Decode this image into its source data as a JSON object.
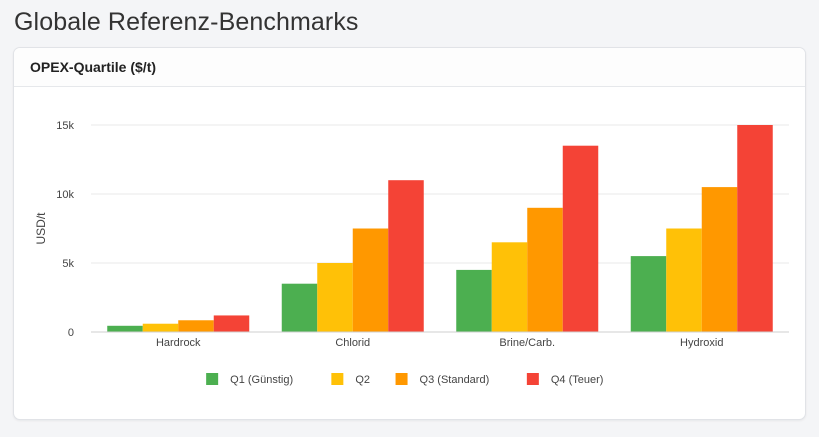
{
  "page": {
    "title": "Globale Referenz-Benchmarks"
  },
  "card": {
    "title": "OPEX-Quartile ($/t)"
  },
  "chart_data": {
    "type": "bar",
    "title": "OPEX-Quartile ($/t)",
    "xlabel": "",
    "ylabel": "USD/t",
    "categories": [
      "Hardrock",
      "Chlorid",
      "Brine/Carb.",
      "Hydroxid"
    ],
    "series": [
      {
        "name": "Q1 (Günstig)",
        "color": "#4caf50",
        "values": [
          450,
          3500,
          4500,
          5500
        ]
      },
      {
        "name": "Q2",
        "color": "#ffc107",
        "values": [
          600,
          5000,
          6500,
          7500
        ]
      },
      {
        "name": "Q3 (Standard)",
        "color": "#ff9800",
        "values": [
          850,
          7500,
          9000,
          10500
        ]
      },
      {
        "name": "Q4 (Teuer)",
        "color": "#f44336",
        "values": [
          1200,
          11000,
          13500,
          15000
        ]
      }
    ],
    "ylim": [
      0,
      15000
    ],
    "yticks": [
      {
        "value": 0,
        "label": "0"
      },
      {
        "value": 5000,
        "label": "5k"
      },
      {
        "value": 10000,
        "label": "10k"
      },
      {
        "value": 15000,
        "label": "15k"
      }
    ],
    "grid": true,
    "legend_position": "bottom"
  }
}
